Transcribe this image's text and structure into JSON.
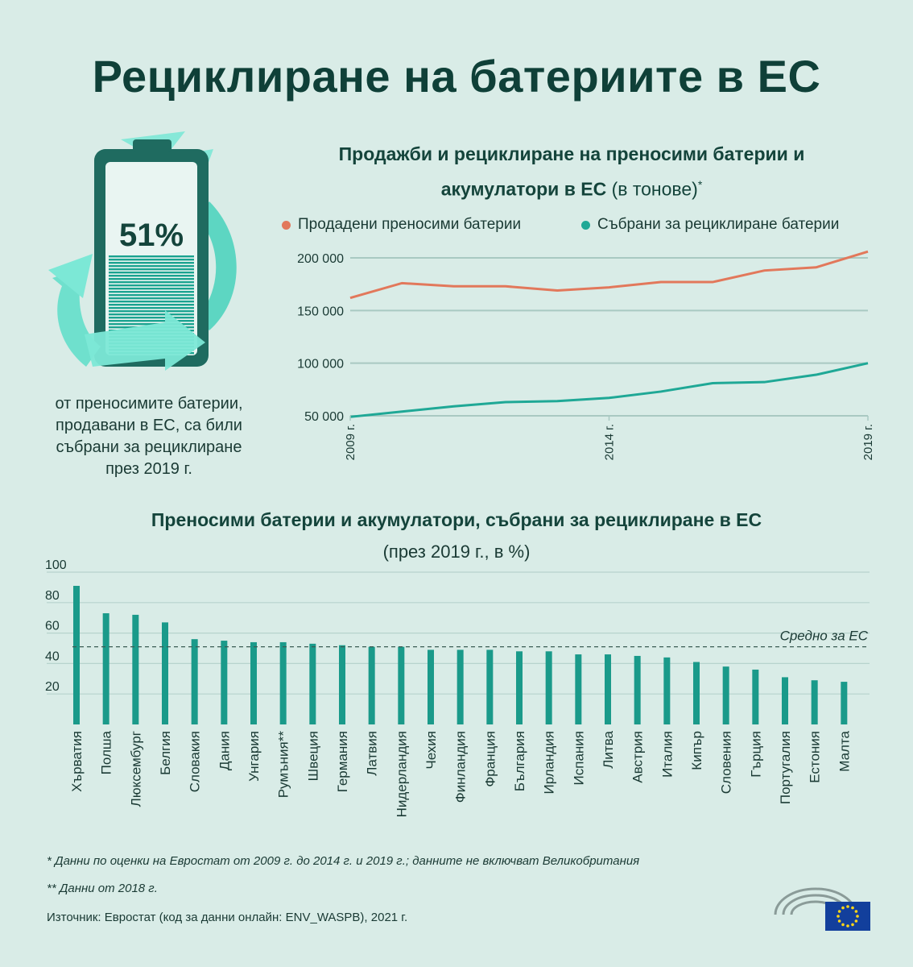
{
  "header": {
    "title": "Рециклиране на батериите в ЕС"
  },
  "highlight": {
    "percent": "51%",
    "caption": [
      "от преносимите батерии,",
      "продавани в ЕС, са били",
      "събрани за рециклиране",
      "през 2019 г."
    ]
  },
  "colors": {
    "sales": "#e2785b",
    "collected": "#1fa896",
    "bar": "#1a9a8a",
    "accent": "#7ce8d6",
    "title": "#0f4038"
  },
  "chart_data": [
    {
      "type": "line",
      "title_bold_1": "Продажби и рециклиране на преносими батерии и",
      "title_bold_2": "акумулатори в ЕС",
      "title_rest": " (в тонове)",
      "title_mark": "*",
      "x": [
        2009,
        2010,
        2011,
        2012,
        2013,
        2014,
        2015,
        2016,
        2017,
        2018,
        2019
      ],
      "x_ticks": [
        "2009 г.",
        "2014 г.",
        "2019 г."
      ],
      "y_ticks": [
        "200 000",
        "150 000",
        "100 000",
        "50 000"
      ],
      "y_tick_values": [
        200000,
        150000,
        100000,
        50000
      ],
      "ylim": [
        50000,
        200000
      ],
      "series": [
        {
          "name": "Продадени преносими батерии",
          "values": [
            162000,
            176000,
            173000,
            173000,
            169000,
            172000,
            177000,
            177000,
            188000,
            191000,
            206000
          ]
        },
        {
          "name": "Събрани за рециклиране батерии",
          "values": [
            49000,
            54000,
            59000,
            63000,
            64000,
            67000,
            73000,
            81000,
            82000,
            89000,
            100000
          ]
        }
      ],
      "grid": "horizontal",
      "legend": "top"
    },
    {
      "type": "bar",
      "title": "Преносими батерии и акумулатори, събрани за рециклиране в ЕС",
      "subtitle": "(през 2019 г., в %)",
      "categories": [
        "Хърватия",
        "Полша",
        "Люксембург",
        "Белгия",
        "Словакия",
        "Дания",
        "Унгария",
        "Румъния**",
        "Швеция",
        "Германия",
        "Латвия",
        "Нидерландия",
        "Чехия",
        "Финландия",
        "Франция",
        "България",
        "Ирландия",
        "Испания",
        "Литва",
        "Австрия",
        "Италия",
        "Кипър",
        "Словения",
        "Гърция",
        "Португалия",
        "Естония",
        "Малта"
      ],
      "values": [
        91,
        73,
        72,
        67,
        56,
        55,
        54,
        54,
        53,
        52,
        51,
        51,
        49,
        49,
        49,
        48,
        48,
        46,
        46,
        45,
        44,
        41,
        38,
        36,
        31,
        29,
        28
      ],
      "y_ticks": [
        100,
        80,
        60,
        40,
        20
      ],
      "ylim": [
        0,
        100
      ],
      "average": 51,
      "average_label": "Средно за ЕС",
      "grid": "horizontal"
    }
  ],
  "footnotes": {
    "note1": "* Данни по оценки на Евростат от 2009 г. до 2014 г. и 2019 г.; данните не включват Великобритания",
    "note2": "** Данни от 2018 г.",
    "source": "Източник: Евростат (код за данни онлайн: ENV_WASPB), 2021 г."
  }
}
